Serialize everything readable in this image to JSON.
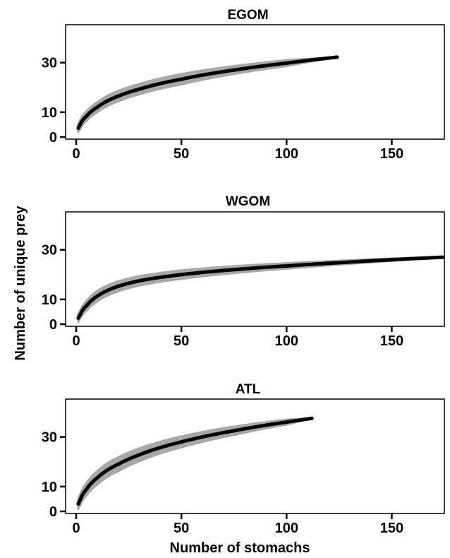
{
  "figure": {
    "xlabel": "Number of stomachs",
    "ylabel": "Number of unique prey",
    "colors": {
      "mean_curve": "#000000",
      "confidence_band": "#a8a8a8",
      "axis": "#000000"
    }
  },
  "chart_data": [
    {
      "type": "line",
      "title": "EGOM",
      "xlabel": "",
      "ylabel": "",
      "xlim": [
        0,
        175
      ],
      "ylim": [
        0,
        43
      ],
      "xticks": [
        "0",
        "50",
        "100",
        "150"
      ],
      "yticks": [
        "0",
        "10",
        "30"
      ],
      "grid": false,
      "legend": "none",
      "series": [
        {
          "x": [
            1,
            2,
            5,
            10,
            20,
            30,
            50,
            75,
            100,
            124
          ],
          "values": [
            3.6,
            5.2,
            8.5,
            12.0,
            16.5,
            19.3,
            23.3,
            27.0,
            29.8,
            32.2
          ],
          "band_lower": [
            2.0,
            3.4,
            6.6,
            10.0,
            14.4,
            17.2,
            21.2,
            25.4,
            28.6,
            32.2
          ],
          "band_upper": [
            5.2,
            7.0,
            10.4,
            14.0,
            18.6,
            21.4,
            25.4,
            28.6,
            31.0,
            32.2
          ]
        }
      ]
    },
    {
      "type": "line",
      "title": "WGOM",
      "xlabel": "",
      "ylabel": "",
      "xlim": [
        0,
        175
      ],
      "ylim": [
        0,
        43
      ],
      "xticks": [
        "0",
        "50",
        "100",
        "150"
      ],
      "yticks": [
        "0",
        "10",
        "30"
      ],
      "grid": false,
      "legend": "none",
      "series": [
        {
          "x": [
            1,
            2,
            5,
            10,
            20,
            30,
            50,
            75,
            100,
            125,
            150,
            174
          ],
          "values": [
            2.5,
            4.0,
            7.5,
            11.3,
            15.3,
            17.5,
            20.0,
            22.0,
            23.5,
            24.8,
            26.0,
            27.0
          ],
          "band_lower": [
            1.0,
            2.4,
            5.5,
            9.2,
            13.3,
            15.6,
            18.3,
            20.6,
            22.4,
            24.0,
            25.5,
            27.0
          ],
          "band_upper": [
            4.0,
            5.6,
            9.5,
            13.4,
            17.3,
            19.4,
            21.7,
            23.4,
            24.6,
            25.6,
            26.5,
            27.0
          ]
        }
      ]
    },
    {
      "type": "line",
      "title": "ATL",
      "xlabel": "Number of stomachs",
      "ylabel": "",
      "xlim": [
        0,
        175
      ],
      "ylim": [
        0,
        43
      ],
      "xticks": [
        "0",
        "50",
        "100",
        "150"
      ],
      "yticks": [
        "0",
        "10",
        "30"
      ],
      "grid": false,
      "legend": "none",
      "series": [
        {
          "x": [
            1,
            2,
            5,
            10,
            20,
            30,
            50,
            75,
            100,
            112
          ],
          "values": [
            3.0,
            4.8,
            9.0,
            13.5,
            19.0,
            22.8,
            28.0,
            32.5,
            36.0,
            37.5
          ],
          "band_lower": [
            1.0,
            2.6,
            6.5,
            10.8,
            16.2,
            20.2,
            25.8,
            30.8,
            35.0,
            37.5
          ],
          "band_upper": [
            5.0,
            7.0,
            11.5,
            16.2,
            21.8,
            25.4,
            30.2,
            34.2,
            37.0,
            37.5
          ]
        }
      ]
    }
  ]
}
